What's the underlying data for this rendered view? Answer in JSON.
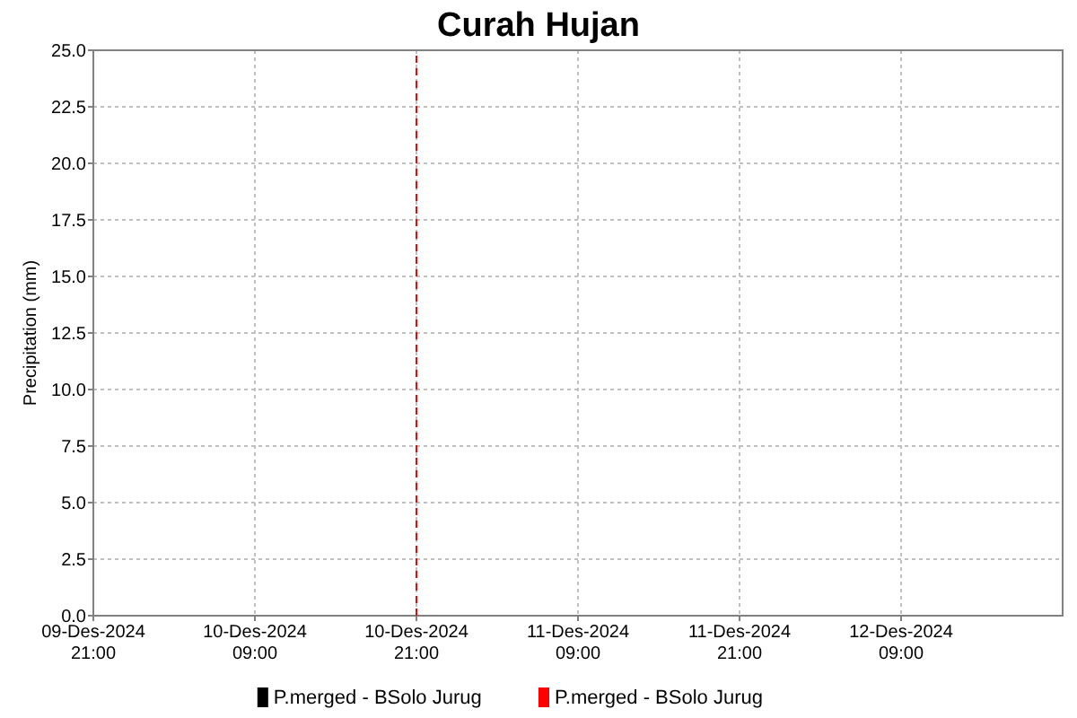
{
  "chart_data": {
    "type": "line",
    "title": "Curah Hujan",
    "ylabel": "Precipitation (mm)",
    "xlim": [
      "2024-12-09T21:00",
      "2024-12-12T21:00"
    ],
    "xticks": [
      {
        "value": "2024-12-09T21:00",
        "label": "09-Des-2024\n21:00"
      },
      {
        "value": "2024-12-10T09:00",
        "label": "10-Des-2024\n09:00"
      },
      {
        "value": "2024-12-10T21:00",
        "label": "10-Des-2024\n21:00"
      },
      {
        "value": "2024-12-11T09:00",
        "label": "11-Des-2024\n09:00"
      },
      {
        "value": "2024-12-11T21:00",
        "label": "11-Des-2024\n21:00"
      },
      {
        "value": "2024-12-12T09:00",
        "label": "12-Des-2024\n09:00"
      }
    ],
    "ylim": [
      0,
      25
    ],
    "yticks": [
      {
        "value": 0,
        "label": "0.0"
      },
      {
        "value": 2.5,
        "label": "2.5"
      },
      {
        "value": 5,
        "label": "5.0"
      },
      {
        "value": 7.5,
        "label": "7.5"
      },
      {
        "value": 10,
        "label": "10.0"
      },
      {
        "value": 12.5,
        "label": "12.5"
      },
      {
        "value": 15,
        "label": "15.0"
      },
      {
        "value": 17.5,
        "label": "17.5"
      },
      {
        "value": 20,
        "label": "20.0"
      },
      {
        "value": 22.5,
        "label": "22.5"
      },
      {
        "value": 25,
        "label": "25.0"
      }
    ],
    "grid": true,
    "legend": "bottom",
    "series": [
      {
        "name": "P.merged - BSolo Jurug",
        "color": "#000000"
      },
      {
        "name": "P.merged - BSolo Jurug",
        "color": "#ff0000",
        "line_style": "dashed",
        "x": [
          "2024-12-10T21:00",
          "2024-12-10T21:00"
        ],
        "values": [
          0,
          25
        ]
      }
    ]
  }
}
